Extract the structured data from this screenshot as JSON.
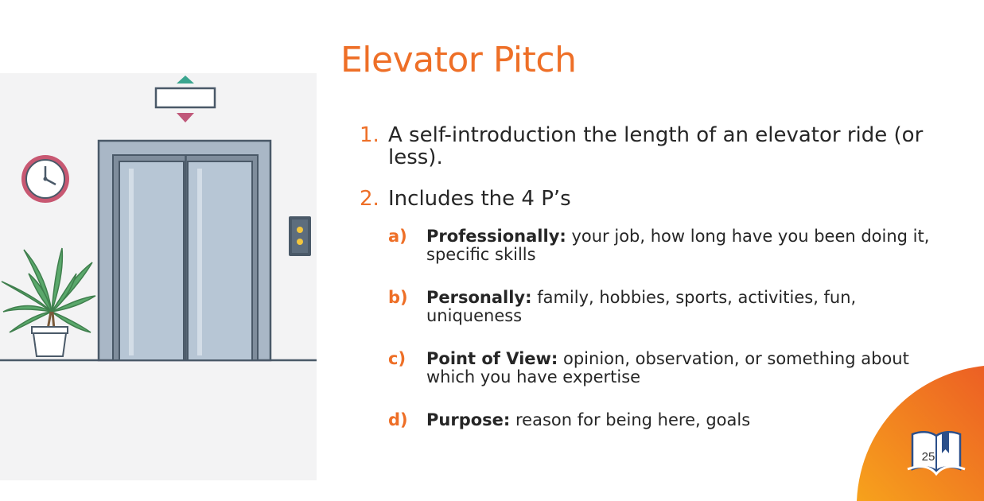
{
  "slide": {
    "title": "Elevator Pitch",
    "page_number": "25",
    "accent_color": "#ee6f27",
    "items": [
      {
        "number": "1.",
        "text": "A self-introduction the length of an elevator ride (or less)."
      },
      {
        "number": "2.",
        "text": "Includes the 4 P’s"
      }
    ],
    "subitems": [
      {
        "letter": "a)",
        "term": "Professionally:",
        "text": " your job, how long have you been doing it, specific skills"
      },
      {
        "letter": "b)",
        "term": "Personally:",
        "text": " family, hobbies, sports, activities, fun, uniqueness"
      },
      {
        "letter": "c)",
        "term": "Point of View:",
        "text": " opinion, observation, or something about which you have expertise"
      },
      {
        "letter": "d)",
        "term": "Purpose:",
        "text": " reason for being here, goals"
      }
    ]
  },
  "illustration": {
    "icons": [
      "elevator-icon",
      "up-arrow-icon",
      "down-arrow-icon",
      "wall-clock-icon",
      "call-button-icon",
      "potted-plant-icon"
    ]
  },
  "footer": {
    "icon": "book-bookmark-icon"
  }
}
